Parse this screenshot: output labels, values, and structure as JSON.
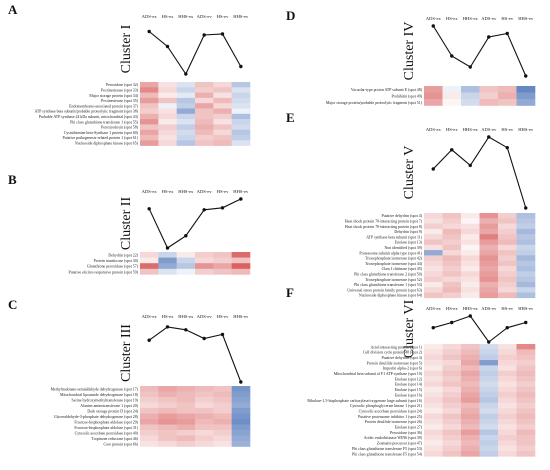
{
  "colors": {
    "red_strong": "#d03a3a",
    "blue_strong": "#4a72b8",
    "neutral": "#ffffff",
    "line": "#111111"
  },
  "samples": [
    "ADS-ex",
    "HS-ex",
    "HHS-ex",
    "ADS-ev",
    "HS-ev",
    "HHS-ev"
  ],
  "panels": [
    {
      "letter": "A",
      "title": "Cluster I",
      "profile": [
        0.85,
        0.55,
        0.0,
        0.78,
        0.8,
        0.15
      ],
      "proteins": [
        "Peroxidase (spot 32)",
        "Pectinesterase (spot 33)",
        "Major storage protein (spot 34)",
        "Pectinesterase (spot 35)",
        "Endomembrane-associated protein (spot 37)",
        "ATP synthase beta subunit/probable proteolytic fragment (spot 38)",
        "Probable ATP synthase 24 kDa subunit, mitochondrial (spot 43)",
        "Phi class glutathione transferase 1 (spot 55)",
        "Peroxiredoxin (spot 58)",
        "Cystathionine beta-Synthase 1 protein (spot 60)",
        "Putative pathogenesis-related protein 1 (spot 61)",
        "Nucleoside diphosphate kinase (spot 65)"
      ],
      "heat": [
        [
          0.45,
          0.15,
          -0.2,
          0.3,
          0.2,
          -0.4
        ],
        [
          0.6,
          0.2,
          -0.3,
          0.25,
          0.3,
          -0.2
        ],
        [
          0.35,
          0.1,
          -0.15,
          0.4,
          0.15,
          -0.3
        ],
        [
          0.5,
          0.3,
          -0.4,
          0.2,
          0.35,
          -0.25
        ],
        [
          0.3,
          -0.1,
          -0.35,
          0.45,
          0.2,
          -0.2
        ],
        [
          0.25,
          0.15,
          -0.6,
          0.3,
          0.4,
          -0.1
        ],
        [
          0.4,
          0.2,
          -0.3,
          0.3,
          0.25,
          -0.45
        ],
        [
          0.55,
          0.1,
          -0.2,
          0.35,
          0.15,
          -0.3
        ],
        [
          0.3,
          0.25,
          -0.35,
          0.4,
          0.3,
          -0.25
        ],
        [
          0.45,
          0.2,
          -0.25,
          0.35,
          0.2,
          -0.4
        ],
        [
          0.35,
          0.15,
          -0.3,
          0.25,
          0.3,
          -0.35
        ],
        [
          0.5,
          0.2,
          -0.4,
          0.3,
          0.35,
          -0.2
        ]
      ]
    },
    {
      "letter": "B",
      "title": "Cluster II",
      "profile": [
        0.8,
        0.0,
        0.25,
        0.78,
        0.82,
        1.0
      ],
      "proteins": [
        "Dehydrin (spot 22)",
        "Protein translocase (spot 30)",
        "Glutathione peroxidase (spot 57)",
        "Putative elicitor-responsive protein (spot 59)"
      ],
      "heat": [
        [
          0.2,
          -0.3,
          0.1,
          0.25,
          0.3,
          0.75
        ],
        [
          0.1,
          -0.7,
          -0.3,
          0.2,
          0.25,
          0.3
        ],
        [
          0.75,
          -0.6,
          -0.4,
          0.55,
          0.45,
          0.8
        ],
        [
          0.3,
          -0.2,
          -0.1,
          0.25,
          0.3,
          0.35
        ]
      ]
    },
    {
      "letter": "C",
      "title": "Cluster III",
      "profile": [
        0.72,
        0.95,
        0.9,
        0.75,
        0.82,
        0.0
      ],
      "proteins": [
        "Methylmalonate-semialdehyde dehydrogenase (spot 17)",
        "Mitochondrial lipoamide dehydrogenase (spot 18)",
        "Serine hydroxymethyltransferase (spot 19)",
        "Alanine aminotransferase 1 (spot 20)",
        "Dark storage protein D (spot 24)",
        "Glyceraldehyde-3-phosphate dehydrogenase (spot 28)",
        "Fructose-bisphosphate aldolase (spot 29)",
        "Fructose-bisphosphate aldolase (spot 31)",
        "Cytosolic ascorbate peroxidase (spot 40)",
        "Tropinone reductase (spot 46)",
        "Core protein (spot 66)"
      ],
      "heat": [
        [
          0.35,
          0.45,
          0.4,
          0.35,
          0.3,
          -0.75
        ],
        [
          0.3,
          0.4,
          0.35,
          0.3,
          0.35,
          -0.7
        ],
        [
          0.25,
          0.3,
          0.35,
          0.25,
          0.3,
          -0.65
        ],
        [
          0.2,
          0.25,
          0.3,
          0.2,
          0.25,
          -0.6
        ],
        [
          0.3,
          0.35,
          0.3,
          0.3,
          0.25,
          -0.7
        ],
        [
          0.4,
          0.5,
          0.45,
          0.4,
          0.35,
          -0.75
        ],
        [
          0.45,
          0.55,
          0.5,
          0.35,
          0.4,
          -0.8
        ],
        [
          0.3,
          0.35,
          0.4,
          0.3,
          0.3,
          -0.7
        ],
        [
          0.25,
          0.3,
          0.25,
          0.2,
          0.25,
          -0.65
        ],
        [
          0.2,
          0.3,
          0.35,
          0.25,
          0.2,
          -0.6
        ],
        [
          0.15,
          0.2,
          0.25,
          0.2,
          0.15,
          -0.55
        ]
      ]
    },
    {
      "letter": "D",
      "title": "Cluster IV",
      "profile": [
        1.0,
        0.4,
        0.18,
        0.78,
        0.85,
        0.0
      ],
      "proteins": [
        "Vacuolar-type proton ATP subunit E (spot 48)",
        "Prohibitin (spot 49)",
        "Major storage protein/probable proteolytic fragment (spot 51)"
      ],
      "heat": [
        [
          0.5,
          -0.1,
          -0.45,
          0.3,
          0.35,
          -0.85
        ],
        [
          0.55,
          0.1,
          -0.3,
          0.25,
          0.4,
          -0.7
        ],
        [
          0.45,
          0.05,
          -0.25,
          0.35,
          0.3,
          -0.6
        ]
      ]
    },
    {
      "letter": "E",
      "title": "Cluster V",
      "profile": [
        0.55,
        0.82,
        0.6,
        1.0,
        0.85,
        0.0
      ],
      "proteins": [
        "Putative dehydrin (spot 4)",
        "Heat shock protein 70-interacting protein (spot 7)",
        "Heat shock protein 70-interacting protein (spot 8)",
        "Dehydrin (spot 9)",
        "ATP synthase beta subunit (spot 11)",
        "Enolase (spot 13)",
        "Non identified (spot 39)",
        "Proteasome subunit alpha type (spot 41)",
        "Triosephosphate isomerase (spot 42)",
        "Triosephosphate isomerase (spot 44)",
        "Class I chitinase (spot 45)",
        "Phi class glutathione transferase 2 (spot 50)",
        "Triosephosphate isomerase (spot 52)",
        "Phi class glutathione transferase 1 (spot 53)",
        "Universal stress protein family protein (spot 63)",
        "Nucleoside diphosphate kinase (spot 64)"
      ],
      "heat": [
        [
          0.2,
          0.3,
          0.1,
          0.55,
          0.25,
          -0.45
        ],
        [
          0.15,
          0.25,
          0.05,
          0.4,
          0.3,
          -0.4
        ],
        [
          0.25,
          0.2,
          0.15,
          0.5,
          0.2,
          -0.35
        ],
        [
          0.1,
          0.35,
          0.2,
          0.45,
          0.25,
          -0.5
        ],
        [
          0.2,
          0.3,
          0.1,
          0.65,
          0.3,
          -0.4
        ],
        [
          0.3,
          0.25,
          0.15,
          0.5,
          0.35,
          -0.45
        ],
        [
          0.15,
          0.3,
          0.05,
          0.4,
          0.2,
          -0.3
        ],
        [
          -0.6,
          0.2,
          0.1,
          0.45,
          0.3,
          -0.35
        ],
        [
          0.25,
          0.35,
          0.2,
          0.55,
          0.25,
          -0.5
        ],
        [
          0.2,
          0.3,
          0.15,
          0.5,
          0.3,
          -0.4
        ],
        [
          0.15,
          0.25,
          0.1,
          0.45,
          0.2,
          -0.45
        ],
        [
          0.2,
          0.3,
          0.2,
          0.5,
          0.25,
          -0.35
        ],
        [
          0.25,
          0.2,
          0.15,
          0.55,
          0.3,
          -0.4
        ],
        [
          0.1,
          0.3,
          0.1,
          0.4,
          0.25,
          -0.5
        ],
        [
          0.2,
          0.35,
          0.15,
          0.45,
          0.2,
          -0.3
        ],
        [
          0.3,
          0.25,
          0.1,
          0.5,
          0.35,
          -0.45
        ]
      ]
    },
    {
      "letter": "F",
      "title": "Cluster VI",
      "profile": [
        0.55,
        0.75,
        1.0,
        0.0,
        0.55,
        0.75
      ],
      "proteins": [
        "Actol-interacting protein (spot 1)",
        "Cell division cycle protein 48 (spot 2)",
        "Putative dehydrin (spot 3)",
        "Protein disulfide isomerase (spot 5)",
        "Importin alpha-2 (spot 6)",
        "Mitochondrial beta subunit of F1 ATP synthase (spot 10)",
        "Enolase (spot 12)",
        "Enolase (spot 14)",
        "Enolase (spot 15)",
        "Enolase (spot 16)",
        "Ribulose-1,5-bisphosphate carboxylase/oxygenase large subunit (spot 16)",
        "Cytosolic phosphoglycerate kinase 1 (spot 21)",
        "Cytosolic ascorbate peroxidase (spot 24)",
        "Putative proteasome inhibitor 1 (spot 25)",
        "Protein disulfide isomerase (spot 26)",
        "Enolase (spot 27)",
        "Peroxidase (spot 36)",
        "Acidic endochitinase WIN6 (spot 39)",
        "Zeamatin precursor (spot 47)",
        "Phi class glutathione transferase F5 (spot 53)",
        "Phi class glutathione transferase F5 (spot 54)"
      ],
      "heat": [
        [
          0.1,
          0.2,
          0.3,
          -0.25,
          0.15,
          0.6
        ],
        [
          0.15,
          0.25,
          0.35,
          -0.3,
          0.2,
          0.35
        ],
        [
          0.2,
          0.3,
          0.4,
          -0.35,
          0.25,
          0.3
        ],
        [
          0.15,
          0.2,
          0.45,
          -0.7,
          0.2,
          0.25
        ],
        [
          0.1,
          0.25,
          0.35,
          -0.3,
          0.15,
          0.3
        ],
        [
          0.2,
          0.3,
          0.45,
          -0.35,
          0.25,
          0.35
        ],
        [
          0.15,
          0.25,
          0.4,
          -0.3,
          0.2,
          0.3
        ],
        [
          0.2,
          0.3,
          0.35,
          -0.25,
          0.15,
          0.25
        ],
        [
          0.1,
          0.2,
          0.4,
          -0.3,
          0.2,
          0.3
        ],
        [
          0.15,
          0.25,
          0.45,
          -0.35,
          0.25,
          0.35
        ],
        [
          0.2,
          0.3,
          0.5,
          -0.4,
          0.2,
          0.3
        ],
        [
          0.15,
          0.25,
          0.35,
          -0.3,
          0.15,
          0.25
        ],
        [
          0.1,
          0.2,
          0.4,
          -0.25,
          0.2,
          0.3
        ],
        [
          0.2,
          0.3,
          0.45,
          -0.35,
          0.25,
          0.35
        ],
        [
          0.15,
          0.25,
          0.4,
          -0.3,
          0.2,
          0.3
        ],
        [
          0.1,
          0.2,
          0.35,
          -0.25,
          0.15,
          0.25
        ],
        [
          0.2,
          0.3,
          0.5,
          -0.4,
          0.2,
          0.35
        ],
        [
          0.15,
          0.25,
          0.4,
          -0.3,
          0.25,
          0.3
        ],
        [
          0.1,
          0.2,
          0.35,
          -0.35,
          0.2,
          0.3
        ],
        [
          0.15,
          0.25,
          0.4,
          -0.3,
          0.15,
          0.25
        ],
        [
          0.2,
          0.3,
          0.45,
          -0.35,
          0.2,
          0.3
        ]
      ]
    }
  ]
}
